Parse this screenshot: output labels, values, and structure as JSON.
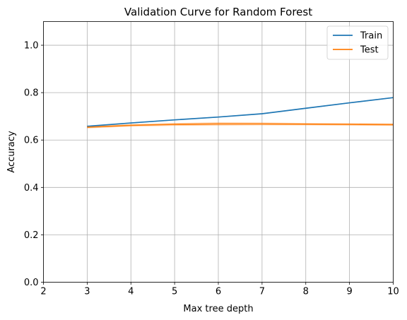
{
  "chart_data": {
    "type": "line",
    "title": "Validation Curve for Random Forest",
    "xlabel": "Max tree depth",
    "ylabel": "Accuracy",
    "xlim": [
      2,
      10
    ],
    "ylim": [
      0,
      1.1
    ],
    "xticks": [
      2,
      3,
      4,
      5,
      6,
      7,
      8,
      9,
      10
    ],
    "yticks": [
      0.0,
      0.2,
      0.4,
      0.6,
      0.8,
      1.0
    ],
    "xtick_labels": [
      "2",
      "3",
      "4",
      "5",
      "6",
      "7",
      "8",
      "9",
      "10"
    ],
    "ytick_labels": [
      "0.0",
      "0.2",
      "0.4",
      "0.6",
      "0.8",
      "1.0"
    ],
    "grid": true,
    "legend_position": "top-right",
    "series": [
      {
        "name": "Train",
        "color": "#1f77b4",
        "x": [
          3,
          4,
          5,
          6,
          7,
          8,
          9,
          10
        ],
        "y": [
          0.658,
          0.672,
          0.685,
          0.697,
          0.711,
          0.734,
          0.757,
          0.779
        ],
        "band": [
          0.002,
          0.002,
          0.002,
          0.002,
          0.002,
          0.002,
          0.002,
          0.002
        ]
      },
      {
        "name": "Test",
        "color": "#ff7f0e",
        "x": [
          3,
          4,
          5,
          6,
          7,
          8,
          9,
          10
        ],
        "y": [
          0.654,
          0.662,
          0.666,
          0.668,
          0.668,
          0.667,
          0.666,
          0.665
        ],
        "band": [
          0.005,
          0.005,
          0.006,
          0.007,
          0.006,
          0.005,
          0.005,
          0.005
        ]
      }
    ]
  }
}
